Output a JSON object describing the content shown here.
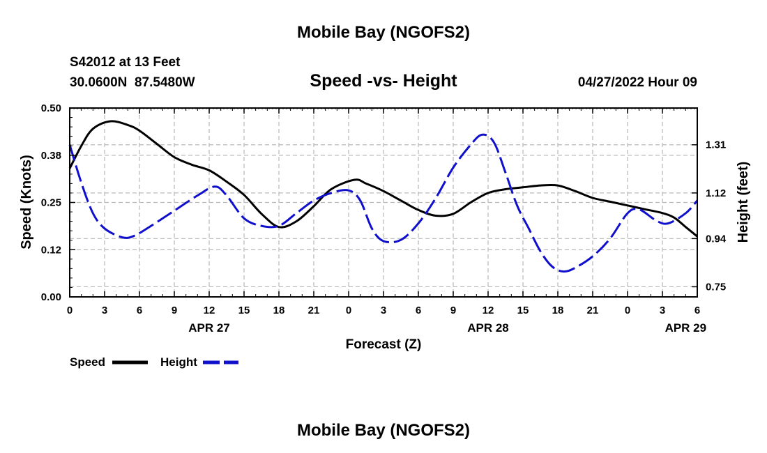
{
  "chart_data": {
    "type": "line",
    "title": "Mobile Bay (NGOFS2)",
    "bottom_title": "Mobile Bay (NGOFS2)",
    "subtitle": "Speed -vs- Height",
    "station": "S42012 at 13 Feet",
    "location": "30.0600N  87.5480W",
    "timestamp": "04/27/2022 Hour 09",
    "xlabel": "Forecast (Z)",
    "ylabel_left": "Speed (Knots)",
    "ylabel_right": "Height (feet)",
    "x_range": [
      0,
      54
    ],
    "ylim_left": [
      0,
      0.5
    ],
    "ylim_right": [
      0.71,
      1.455
    ],
    "x_ticks": [
      {
        "x": 0,
        "label": "0"
      },
      {
        "x": 3,
        "label": "3"
      },
      {
        "x": 6,
        "label": "6"
      },
      {
        "x": 9,
        "label": "9"
      },
      {
        "x": 12,
        "label": "12"
      },
      {
        "x": 15,
        "label": "15"
      },
      {
        "x": 18,
        "label": "18"
      },
      {
        "x": 21,
        "label": "21"
      },
      {
        "x": 24,
        "label": "0"
      },
      {
        "x": 27,
        "label": "3"
      },
      {
        "x": 30,
        "label": "6"
      },
      {
        "x": 33,
        "label": "9"
      },
      {
        "x": 36,
        "label": "12"
      },
      {
        "x": 39,
        "label": "15"
      },
      {
        "x": 42,
        "label": "18"
      },
      {
        "x": 45,
        "label": "21"
      },
      {
        "x": 48,
        "label": "0"
      },
      {
        "x": 51,
        "label": "3"
      },
      {
        "x": 54,
        "label": "6"
      }
    ],
    "date_labels": [
      {
        "x": 12,
        "label": "APR 27"
      },
      {
        "x": 36,
        "label": "APR 28"
      },
      {
        "x": 53,
        "label": "APR 29"
      }
    ],
    "left_ticks": [
      {
        "value": 0.0,
        "label": "0.00"
      },
      {
        "value": 0.125,
        "label": "0.12"
      },
      {
        "value": 0.25,
        "label": "0.25"
      },
      {
        "value": 0.375,
        "label": "0.38"
      },
      {
        "value": 0.5,
        "label": "0.50"
      }
    ],
    "right_ticks": [
      {
        "value": 0.75,
        "label": "0.75"
      },
      {
        "value": 0.94,
        "label": "0.94"
      },
      {
        "value": 1.12,
        "label": "1.12"
      },
      {
        "value": 1.31,
        "label": "1.31"
      }
    ],
    "grid": true,
    "legend_position": "bottom-left",
    "series": [
      {
        "name": "Speed",
        "axis": "left",
        "color": "#000000",
        "style": "solid",
        "points": [
          [
            0,
            0.34
          ],
          [
            1,
            0.4
          ],
          [
            2,
            0.445
          ],
          [
            3.5,
            0.465
          ],
          [
            5,
            0.455
          ],
          [
            6,
            0.44
          ],
          [
            7.5,
            0.405
          ],
          [
            9,
            0.37
          ],
          [
            10.5,
            0.35
          ],
          [
            12,
            0.335
          ],
          [
            13.5,
            0.305
          ],
          [
            15,
            0.27
          ],
          [
            16.5,
            0.22
          ],
          [
            18,
            0.185
          ],
          [
            19.5,
            0.2
          ],
          [
            21,
            0.24
          ],
          [
            22.5,
            0.285
          ],
          [
            24.5,
            0.31
          ],
          [
            25.5,
            0.3
          ],
          [
            27,
            0.28
          ],
          [
            28.5,
            0.255
          ],
          [
            30,
            0.23
          ],
          [
            31.5,
            0.215
          ],
          [
            33,
            0.22
          ],
          [
            34.5,
            0.25
          ],
          [
            36,
            0.275
          ],
          [
            37.5,
            0.285
          ],
          [
            39,
            0.29
          ],
          [
            40.5,
            0.295
          ],
          [
            42,
            0.295
          ],
          [
            43.5,
            0.28
          ],
          [
            45,
            0.262
          ],
          [
            46.5,
            0.252
          ],
          [
            48,
            0.242
          ],
          [
            49.5,
            0.232
          ],
          [
            51,
            0.222
          ],
          [
            52,
            0.21
          ],
          [
            53,
            0.185
          ],
          [
            54,
            0.16
          ]
        ]
      },
      {
        "name": "Height",
        "axis": "right",
        "color": "#1010cc",
        "style": "dashed",
        "points": [
          [
            0,
            1.31
          ],
          [
            1,
            1.16
          ],
          [
            2,
            1.04
          ],
          [
            3,
            0.98
          ],
          [
            4.5,
            0.945
          ],
          [
            5.5,
            0.95
          ],
          [
            7,
            0.99
          ],
          [
            9,
            1.05
          ],
          [
            11,
            1.11
          ],
          [
            12.5,
            1.145
          ],
          [
            13.5,
            1.11
          ],
          [
            15,
            1.02
          ],
          [
            16.5,
            0.99
          ],
          [
            18,
            0.99
          ],
          [
            19.5,
            1.04
          ],
          [
            21,
            1.09
          ],
          [
            22.5,
            1.12
          ],
          [
            24,
            1.13
          ],
          [
            25,
            1.09
          ],
          [
            26,
            0.98
          ],
          [
            27,
            0.93
          ],
          [
            28.5,
            0.935
          ],
          [
            30,
            1.0
          ],
          [
            31.5,
            1.1
          ],
          [
            33,
            1.22
          ],
          [
            34.5,
            1.31
          ],
          [
            35.5,
            1.35
          ],
          [
            36.5,
            1.32
          ],
          [
            37.5,
            1.2
          ],
          [
            38.5,
            1.07
          ],
          [
            39.5,
            0.98
          ],
          [
            40.5,
            0.89
          ],
          [
            41.5,
            0.83
          ],
          [
            42.5,
            0.81
          ],
          [
            43.5,
            0.825
          ],
          [
            45,
            0.87
          ],
          [
            46.5,
            0.94
          ],
          [
            48,
            1.04
          ],
          [
            49,
            1.055
          ],
          [
            50.5,
            1.01
          ],
          [
            51.5,
            1.0
          ],
          [
            53,
            1.04
          ],
          [
            54,
            1.09
          ]
        ]
      }
    ]
  }
}
